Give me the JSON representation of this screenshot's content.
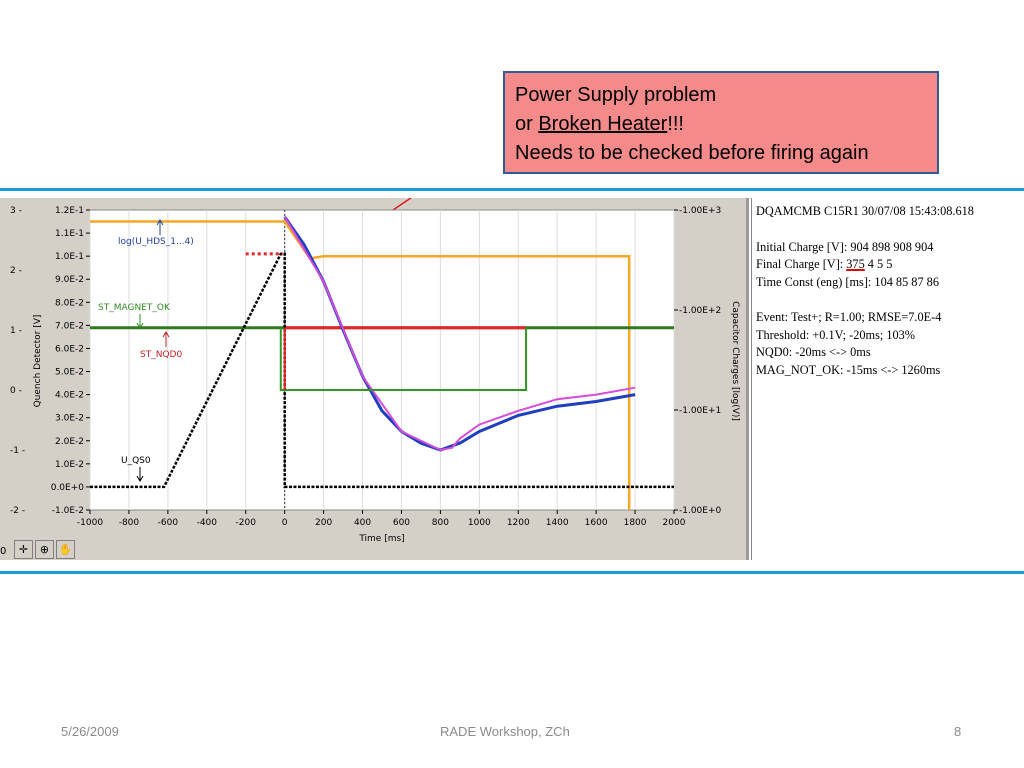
{
  "callout": {
    "line1": "Power Supply problem",
    "line2_prefix": "or ",
    "line2_underlined": "Broken Heater",
    "line2_suffix": "!!!",
    "line3": "Needs to be checked before firing again"
  },
  "chart_data": {
    "type": "line",
    "xlabel": "Time [ms]",
    "ylabel_left": "Quench Detector [V]",
    "ylabel_right": "Capacitor Charges [log(V)]",
    "xlim": [
      -1000,
      2000
    ],
    "x_ticks": [
      "-1000",
      "-800",
      "-600",
      "-400",
      "-200",
      "0",
      "200",
      "400",
      "600",
      "800",
      "1000",
      "1200",
      "1400",
      "1600",
      "1800",
      "2000"
    ],
    "y_ticks_far_left": [
      "3 -",
      "2 -",
      "1 -",
      "0 -",
      "-1 -",
      "-2 -"
    ],
    "y_ticks_left": [
      "1.2E-1",
      "1.1E-1",
      "1.0E-1",
      "9.0E-2",
      "8.0E-2",
      "7.0E-2",
      "6.0E-2",
      "5.0E-2",
      "4.0E-2",
      "3.0E-2",
      "2.0E-2",
      "1.0E-2",
      "0.0E+0",
      "-1.0E-2"
    ],
    "y_ticks_right": [
      "1.00E+3",
      "1.00E+2",
      "1.00E+1",
      "1.00E+0"
    ],
    "annotations": [
      "log(U_HDS_1...4)",
      "ST_MAGNET_OK",
      "ST_NQD0",
      "U_QS0"
    ],
    "series": [
      {
        "name": "log(U_HDS_1...4)",
        "color": "#f5a623",
        "x": [
          -1000,
          0,
          130,
          200,
          1000,
          1770,
          1770
        ],
        "y": [
          0.115,
          0.115,
          0.099,
          0.1,
          0.1,
          0.1,
          -0.01
        ]
      },
      {
        "name": "ST_MAGNET_OK",
        "color": "#2f7a1f",
        "x": [
          -1000,
          2000
        ],
        "y": [
          0.069,
          0.069
        ]
      },
      {
        "name": "ST_NQD0",
        "color": "#e8232a",
        "x": [
          0,
          1240
        ],
        "y": [
          0.069,
          0.069
        ]
      },
      {
        "name": "U_QS0",
        "color": "#000000",
        "x": [
          -1000,
          -620,
          -20,
          0,
          0,
          200,
          2000
        ],
        "y": [
          0.0,
          0.0,
          0.101,
          0.101,
          0.0,
          0.0,
          0.0
        ]
      },
      {
        "name": "",
        "color": "#1f3fbf",
        "x": [
          0,
          100,
          200,
          300,
          400,
          500,
          600,
          700,
          800,
          900,
          1000,
          1200,
          1400,
          1600,
          1800
        ],
        "y": [
          0.117,
          0.105,
          0.089,
          0.068,
          0.048,
          0.033,
          0.024,
          0.019,
          0.016,
          0.019,
          0.024,
          0.031,
          0.035,
          0.037,
          0.04
        ]
      },
      {
        "name": "",
        "color": "#d44cd9",
        "x": [
          0,
          200,
          400,
          600,
          800,
          860,
          900,
          1000,
          1200,
          1400,
          1600,
          1800
        ],
        "y": [
          0.117,
          0.089,
          0.048,
          0.024,
          0.016,
          0.017,
          0.021,
          0.027,
          0.033,
          0.038,
          0.04,
          0.043
        ]
      }
    ]
  },
  "info": {
    "header": "DQAMCMB C15R1 30/07/08 15:43:08.618",
    "initial_charge": "Initial Charge [V]: 904 898 908 904",
    "final_charge_prefix": "Final  Charge [V]: ",
    "final_charge_highlight": "375",
    "final_charge_rest": "  4   5   5",
    "time_const": "Time Const (eng) [ms]: 104  85  87  86",
    "event": "Event: Test+; R=1.00; RMSE=7.0E-4",
    "threshold": "Threshold: +0.1V; -20ms; 103%",
    "nqd0": "NQD0: -20ms <-> 0ms",
    "mag_not_ok": "MAG_NOT_OK: -15ms <-> 1260ms"
  },
  "toolbar": {
    "caption": "0"
  },
  "footer": {
    "date": "5/26/2009",
    "title": "RADE Workshop, ZCh",
    "page": "8"
  }
}
